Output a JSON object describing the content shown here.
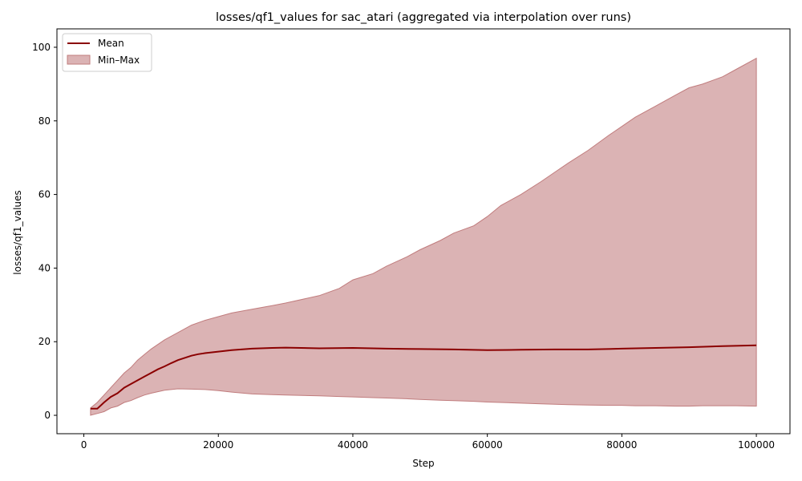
{
  "chart_data": {
    "type": "area",
    "title": "losses/qf1_values for sac_atari (aggregated via interpolation over runs)",
    "xlabel": "Step",
    "ylabel": "losses/qf1_values",
    "xlim": [
      -4000,
      105000
    ],
    "ylim": [
      -5,
      105
    ],
    "x_ticks": [
      0,
      20000,
      40000,
      60000,
      80000,
      100000
    ],
    "y_ticks": [
      0,
      20,
      40,
      60,
      80,
      100
    ],
    "grid": false,
    "legend_position": "top-left",
    "colors": {
      "mean": "#8b0000",
      "band_fill": "#dbb3b4",
      "band_edge": "#c07c7d"
    },
    "series": [
      {
        "name": "Mean",
        "kind": "line",
        "x": [
          1000,
          2000,
          3000,
          4000,
          5000,
          6000,
          7000,
          8000,
          9000,
          10000,
          11000,
          12000,
          13000,
          14000,
          15000,
          16000,
          17000,
          18000,
          20000,
          22000,
          25000,
          28000,
          30000,
          35000,
          40000,
          45000,
          50000,
          55000,
          60000,
          65000,
          70000,
          75000,
          80000,
          85000,
          90000,
          95000,
          100000
        ],
        "y": [
          1.8,
          1.8,
          3.5,
          5.0,
          6.0,
          7.5,
          8.5,
          9.5,
          10.5,
          11.5,
          12.5,
          13.3,
          14.2,
          15.0,
          15.6,
          16.2,
          16.6,
          16.9,
          17.3,
          17.7,
          18.1,
          18.3,
          18.4,
          18.2,
          18.3,
          18.1,
          18.0,
          17.9,
          17.7,
          17.8,
          17.9,
          17.9,
          18.1,
          18.3,
          18.5,
          18.8,
          19.0
        ]
      },
      {
        "name": "Min–Max",
        "kind": "band",
        "x": [
          1000,
          2000,
          3000,
          4000,
          5000,
          6000,
          7000,
          8000,
          9000,
          10000,
          12000,
          14000,
          16000,
          18000,
          20000,
          22000,
          25000,
          28000,
          30000,
          35000,
          38000,
          40000,
          43000,
          45000,
          48000,
          50000,
          53000,
          55000,
          58000,
          60000,
          62000,
          65000,
          68000,
          70000,
          72000,
          75000,
          78000,
          80000,
          82000,
          85000,
          88000,
          90000,
          92000,
          95000,
          97000,
          100000
        ],
        "low": [
          0.0,
          0.5,
          1.0,
          2.0,
          2.5,
          3.5,
          4.0,
          4.8,
          5.5,
          6.0,
          6.8,
          7.2,
          7.1,
          7.0,
          6.7,
          6.3,
          5.8,
          5.6,
          5.5,
          5.3,
          5.1,
          5.0,
          4.8,
          4.7,
          4.5,
          4.3,
          4.1,
          4.0,
          3.8,
          3.6,
          3.5,
          3.3,
          3.1,
          3.0,
          2.9,
          2.8,
          2.7,
          2.7,
          2.6,
          2.6,
          2.5,
          2.5,
          2.6,
          2.6,
          2.6,
          2.5
        ],
        "high": [
          2.0,
          3.5,
          5.5,
          7.5,
          9.5,
          11.5,
          13.0,
          15.0,
          16.5,
          18.0,
          20.5,
          22.5,
          24.5,
          25.8,
          26.8,
          27.8,
          28.8,
          29.8,
          30.5,
          32.5,
          34.5,
          36.8,
          38.5,
          40.5,
          43.0,
          45.0,
          47.5,
          49.5,
          51.5,
          54.0,
          57.0,
          60.0,
          63.5,
          66.0,
          68.5,
          72.0,
          76.0,
          78.5,
          81.0,
          84.0,
          87.0,
          89.0,
          90.0,
          92.0,
          94.0,
          97.0
        ]
      }
    ]
  }
}
